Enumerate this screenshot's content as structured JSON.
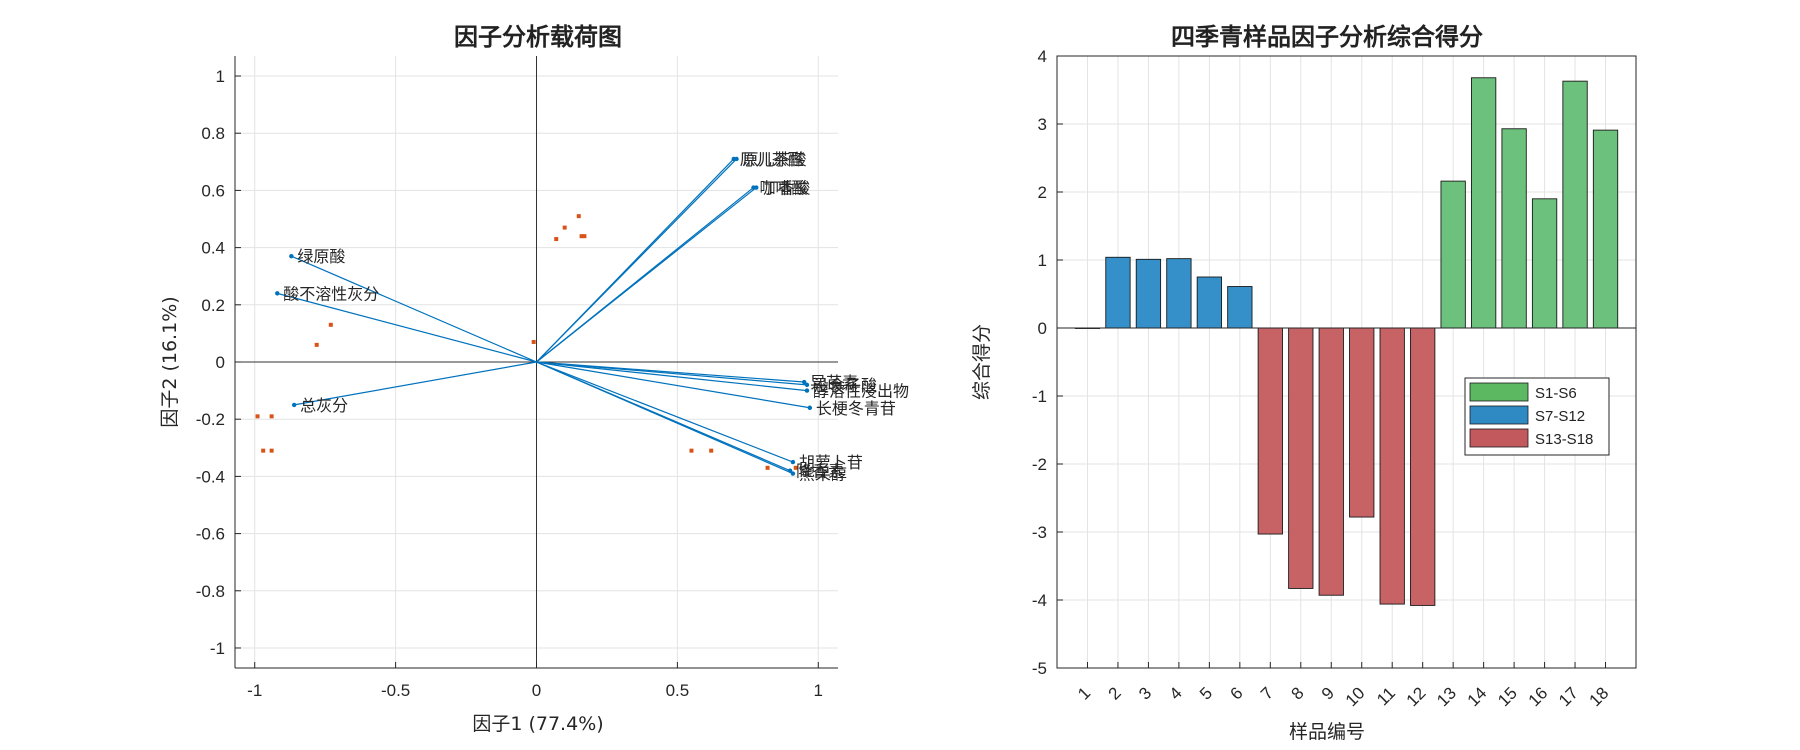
{
  "chart_data": [
    {
      "type": "scatter",
      "subtype": "biplot",
      "title": "因子分析载荷图",
      "xlabel": "因子1 (77.4%)",
      "ylabel": "因子2 (16.1%)",
      "xlim": [
        -1.07,
        1.07
      ],
      "ylim": [
        -1.07,
        1.07
      ],
      "xticks": [
        -1,
        -0.5,
        0,
        0.5,
        1
      ],
      "xtick_labels": [
        "-1",
        "-0.5",
        "0",
        "0.5",
        "1"
      ],
      "yticks": [
        -1,
        -0.8,
        -0.6,
        -0.4,
        -0.2,
        0,
        0.2,
        0.4,
        0.6,
        0.8,
        1
      ],
      "ytick_labels": [
        "-1",
        "-0.8",
        "-0.6",
        "-0.4",
        "-0.2",
        "0",
        "0.2",
        "0.4",
        "0.6",
        "0.8",
        "1"
      ],
      "grid": true,
      "colors": {
        "vector": "#0072BD",
        "score": "#D95319"
      },
      "loadings": [
        {
          "label": "原儿茶醛",
          "x": 0.7,
          "y": 0.71
        },
        {
          "label": "原儿茶酸",
          "x": 0.71,
          "y": 0.71
        },
        {
          "label": "咖啡酸",
          "x": 0.77,
          "y": 0.61
        },
        {
          "label": "丁香酸",
          "x": 0.78,
          "y": 0.61
        },
        {
          "label": "绿原酸",
          "x": -0.87,
          "y": 0.37
        },
        {
          "label": "酸不溶性灰分",
          "x": -0.92,
          "y": 0.24
        },
        {
          "label": "总灰分",
          "x": -0.86,
          "y": -0.15
        },
        {
          "label": "异芪素",
          "x": 0.95,
          "y": -0.07
        },
        {
          "label": "没食子酸",
          "x": 0.96,
          "y": -0.08
        },
        {
          "label": "醇溶性浸出物",
          "x": 0.96,
          "y": -0.1
        },
        {
          "label": "长梗冬青苷",
          "x": 0.97,
          "y": -0.16
        },
        {
          "label": "胡萝卜苷",
          "x": 0.91,
          "y": -0.35
        },
        {
          "label": "降香素",
          "x": 0.9,
          "y": -0.38
        },
        {
          "label": "熊果醇",
          "x": 0.91,
          "y": -0.39
        }
      ],
      "scores": [
        {
          "x": 0.07,
          "y": 0.43
        },
        {
          "x": 0.1,
          "y": 0.47
        },
        {
          "x": 0.15,
          "y": 0.51
        },
        {
          "x": 0.16,
          "y": 0.44
        },
        {
          "x": 0.17,
          "y": 0.44
        },
        {
          "x": -0.01,
          "y": 0.07
        },
        {
          "x": -0.73,
          "y": 0.13
        },
        {
          "x": -0.78,
          "y": 0.06
        },
        {
          "x": -0.99,
          "y": -0.19
        },
        {
          "x": -0.94,
          "y": -0.19
        },
        {
          "x": -0.97,
          "y": -0.31
        },
        {
          "x": -0.94,
          "y": -0.31
        },
        {
          "x": 0.55,
          "y": -0.31
        },
        {
          "x": 0.62,
          "y": -0.31
        },
        {
          "x": 0.82,
          "y": -0.37
        },
        {
          "x": 0.92,
          "y": -0.37
        }
      ]
    },
    {
      "type": "bar",
      "title": "四季青样品因子分析综合得分",
      "xlabel": "样品编号",
      "ylabel": "综合得分",
      "categories": [
        "1",
        "2",
        "3",
        "4",
        "5",
        "6",
        "7",
        "8",
        "9",
        "10",
        "11",
        "12",
        "13",
        "14",
        "15",
        "16",
        "17",
        "18"
      ],
      "values": [
        0,
        1.04,
        1.01,
        1.02,
        0.75,
        0.61,
        -3.03,
        -3.83,
        -3.93,
        -2.78,
        -4.06,
        -4.08,
        2.16,
        3.68,
        2.93,
        1.9,
        3.63,
        2.91
      ],
      "group_index": [
        0,
        1,
        1,
        1,
        1,
        1,
        2,
        2,
        2,
        2,
        2,
        2,
        0,
        0,
        0,
        0,
        0,
        0
      ],
      "ylim": [
        -5,
        4
      ],
      "yticks": [
        -5,
        -4,
        -3,
        -2,
        -1,
        0,
        1,
        2,
        3,
        4
      ],
      "ytick_labels": [
        "-5",
        "-4",
        "-3",
        "-2",
        "-1",
        "0",
        "1",
        "2",
        "3",
        "4"
      ],
      "grid": true,
      "legend_position": "right-middle",
      "legend": [
        {
          "name": "S1-S6",
          "color": "#6CC17C",
          "legend_color": "#5DB862"
        },
        {
          "name": "S7-S12",
          "color": "#3590C9",
          "legend_color": "#2F8AC4"
        },
        {
          "name": "S13-S18",
          "color": "#C76265",
          "legend_color": "#C25A5D"
        }
      ]
    }
  ]
}
